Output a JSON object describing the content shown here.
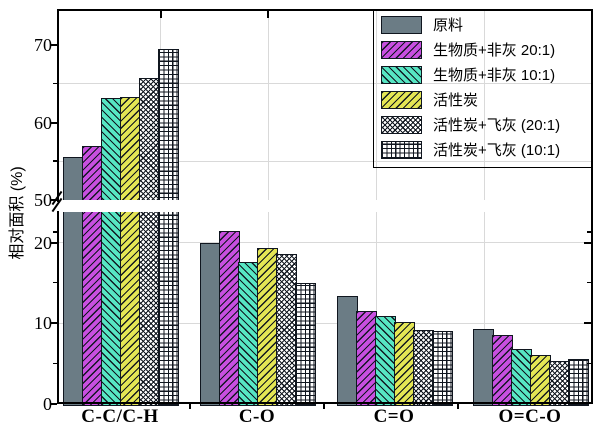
{
  "chart_data": {
    "type": "bar",
    "title": "",
    "ylabel": "相对面积 (%)",
    "categories": [
      "C-C/C-H",
      "C-O",
      "C=O",
      "O=C-O"
    ],
    "series": [
      {
        "name": "原料",
        "pattern": "solid",
        "color": "#6b7c85",
        "values": [
          55.5,
          19.9,
          13.3,
          9.3
        ]
      },
      {
        "name": "生物质+非灰 20:1)",
        "pattern": "hatch-up",
        "color": "#c84fe0",
        "values": [
          57.0,
          21.3,
          11.5,
          8.5
        ]
      },
      {
        "name": "生物质+非灰 10:1)",
        "pattern": "hatch-down",
        "color": "#57e6c3",
        "values": [
          63.2,
          17.5,
          10.9,
          6.8
        ]
      },
      {
        "name": "活性炭",
        "pattern": "hatch-up",
        "color": "#e4e654",
        "values": [
          63.3,
          19.3,
          10.1,
          6.1
        ]
      },
      {
        "name": "活性炭+飞灰 (20:1)",
        "pattern": "crosshatch",
        "color": "#ffffff",
        "values": [
          65.8,
          18.5,
          9.1,
          5.3
        ]
      },
      {
        "name": "活性炭+飞灰 (10:1)",
        "pattern": "grid",
        "color": "#ffffff",
        "values": [
          69.5,
          14.9,
          9.0,
          5.6
        ]
      }
    ],
    "y_axis": {
      "tick_labels": [
        "70",
        "60",
        "50",
        "20",
        "10",
        "0"
      ],
      "axis_break": {
        "lower_max": 25,
        "upper_min": 50
      },
      "ylim": [
        0,
        75
      ]
    },
    "grid": true,
    "legend_position": "top-right",
    "colors": {
      "outline": "#10161f",
      "gridline": "#d9d9d9",
      "text": "#000000",
      "background": "#ffffff"
    }
  }
}
